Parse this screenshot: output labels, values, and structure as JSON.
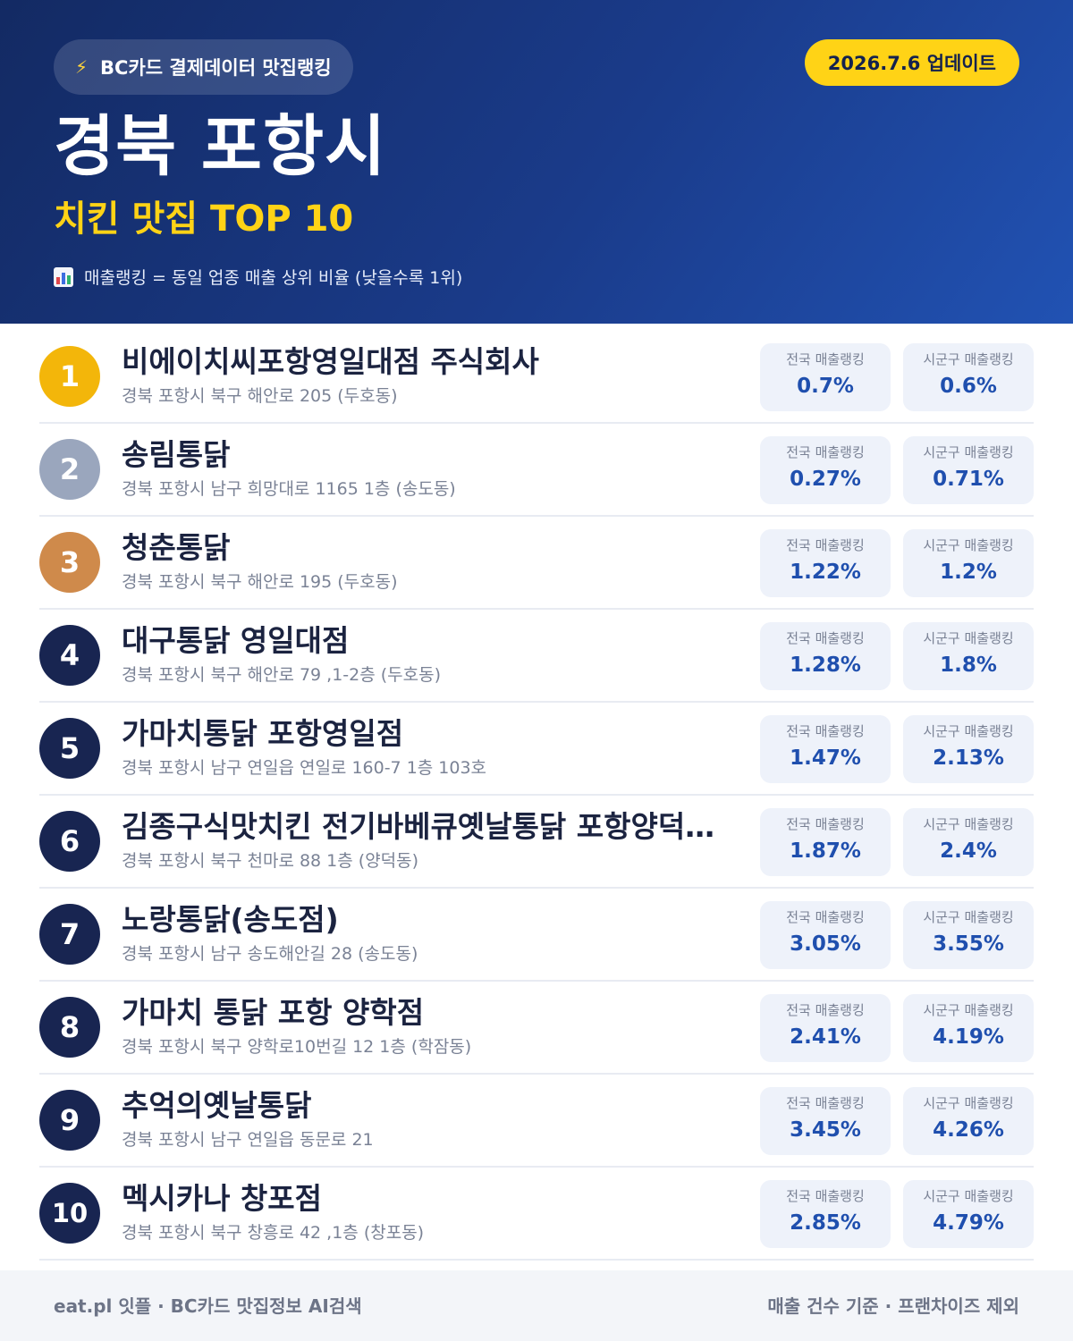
{
  "header": {
    "source_label": "BC카드 결제데이터 맛집랭킹",
    "source_icon": "lightning-bolt-icon",
    "update_label": "2026.7.6 업데이트",
    "region": "경북 포항시",
    "category": "치킨 맛집 TOP 10",
    "legend_icon": "bar-chart-icon",
    "legend": "매출랭킹 = 동일 업종 매출 상위 비율 (낮을수록 1위)"
  },
  "labels": {
    "national": "전국 매출랭킹",
    "local": "시군구 매출랭킹"
  },
  "colors": {
    "header_bg": "#1a3b8a",
    "accent_yellow": "#ffd316",
    "gold": "#f3b60a",
    "silver": "#9aa6bd",
    "bronze": "#cf8a4b",
    "navy_badge": "#182551",
    "value_blue": "#1f4fae"
  },
  "restaurants": [
    {
      "rank": "1",
      "name": "비에이치씨포항영일대점 주식회사",
      "address": "경북 포항시 북구 해안로 205 (두호동)",
      "national": "0.7%",
      "local": "0.6%"
    },
    {
      "rank": "2",
      "name": "송림통닭",
      "address": "경북 포항시 남구 희망대로 1165 1층 (송도동)",
      "national": "0.27%",
      "local": "0.71%"
    },
    {
      "rank": "3",
      "name": "청춘통닭",
      "address": "경북 포항시 북구 해안로 195 (두호동)",
      "national": "1.22%",
      "local": "1.2%"
    },
    {
      "rank": "4",
      "name": "대구통닭 영일대점",
      "address": "경북 포항시 북구 해안로 79 ,1-2층 (두호동)",
      "national": "1.28%",
      "local": "1.8%"
    },
    {
      "rank": "5",
      "name": "가마치통닭 포항영일점",
      "address": "경북 포항시 남구 연일읍 연일로 160-7 1층 103호",
      "national": "1.47%",
      "local": "2.13%"
    },
    {
      "rank": "6",
      "name": "김종구식맛치킨 전기바베큐옛날통닭 포항양덕…",
      "address": "경북 포항시 북구 천마로 88 1층 (양덕동)",
      "national": "1.87%",
      "local": "2.4%"
    },
    {
      "rank": "7",
      "name": "노랑통닭(송도점)",
      "address": "경북 포항시 남구 송도해안길 28 (송도동)",
      "national": "3.05%",
      "local": "3.55%"
    },
    {
      "rank": "8",
      "name": "가마치 통닭 포항 양학점",
      "address": "경북 포항시 북구 양학로10번길 12 1층 (학잠동)",
      "national": "2.41%",
      "local": "4.19%"
    },
    {
      "rank": "9",
      "name": "추억의옛날통닭",
      "address": "경북 포항시 남구 연일읍 동문로 21",
      "national": "3.45%",
      "local": "4.26%"
    },
    {
      "rank": "10",
      "name": "멕시카나 창포점",
      "address": "경북 포항시 북구 창흥로 42 ,1층 (창포동)",
      "national": "2.85%",
      "local": "4.79%"
    }
  ],
  "footer": {
    "left": "eat.pl 잇플 · BC카드 맛집정보 AI검색",
    "right": "매출 건수 기준 · 프랜차이즈 제외"
  }
}
